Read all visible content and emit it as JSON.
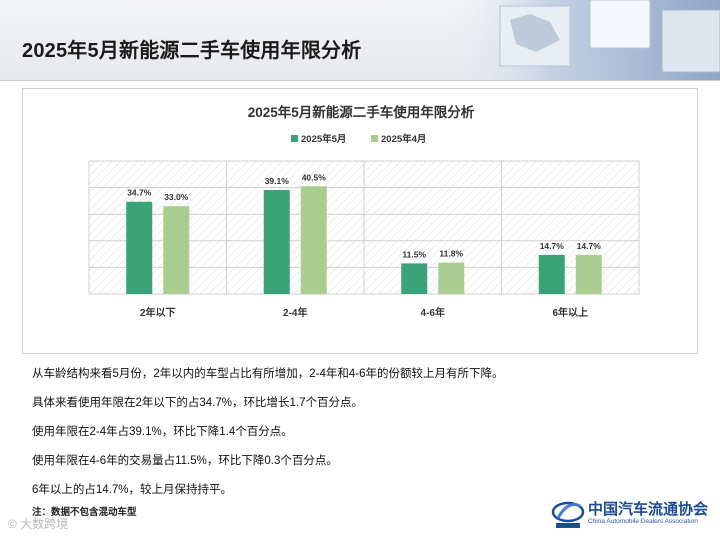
{
  "page_title": "2025年5月新能源二手车使用年限分析",
  "chart_data": {
    "type": "bar",
    "title": "2025年5月新能源二手车使用年限分析",
    "categories": [
      "2年以下",
      "2-4年",
      "4-6年",
      "6年以上"
    ],
    "series": [
      {
        "name": "2025年5月",
        "values": [
          34.7,
          39.1,
          11.5,
          14.7
        ],
        "labels": [
          "34.7%",
          "39.1%",
          "11.5%",
          "14.7%"
        ],
        "color": "#3aa37a"
      },
      {
        "name": "2025年4月",
        "values": [
          33.0,
          40.5,
          11.8,
          14.7
        ],
        "labels": [
          "33.0%",
          "40.5%",
          "11.8%",
          "14.7%"
        ],
        "color": "#a9cd8f"
      }
    ],
    "ylim": [
      0,
      50
    ],
    "grid": true,
    "legend": "top-center"
  },
  "notes": [
    "从车龄结构来看5月份，2年以内的车型占比有所增加，2-4年和4-6年的份额较上月有所下降。",
    "具体来看使用年限在2年以下的占34.7%，环比增长1.7个百分点。",
    "使用年限在2-4年占39.1%，环比下降1.4个百分点。",
    "使用年限在4-6年的交易量占11.5%，环比下降0.3个百分点。",
    "6年以上的占14.7%，较上月保持持平。"
  ],
  "footnote": "注：数据不包含混动车型",
  "watermark": "© 大数跨境",
  "logo": {
    "name": "中国汽车流通协会",
    "english": "China Automobile Dealers Association",
    "icon": "cada-logo-icon"
  }
}
